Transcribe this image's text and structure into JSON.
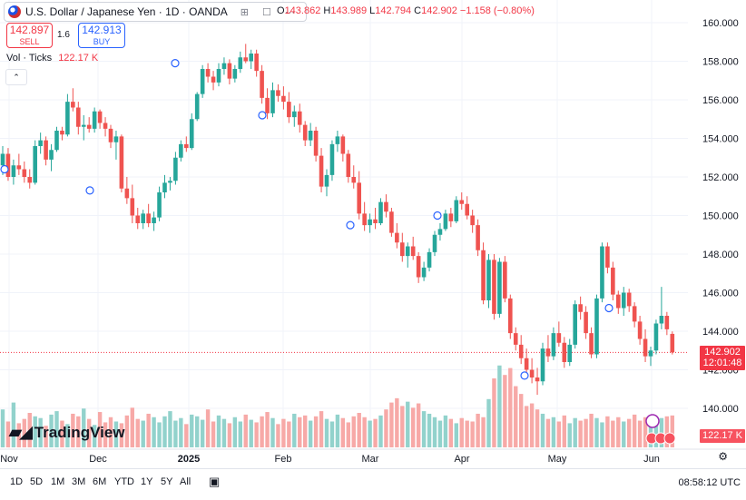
{
  "header": {
    "symbol_title": "U.S. Dollar / Japanese Yen · 1D · OANDA",
    "ohlc": [
      {
        "k": "O",
        "v": "143.862"
      },
      {
        "k": "H",
        "v": "143.989"
      },
      {
        "k": "L",
        "v": "142.794"
      },
      {
        "k": "C",
        "v": "142.902"
      }
    ],
    "change": "−1.158 (−0.80%)"
  },
  "trade": {
    "sell_price": "142.897",
    "sell_label": "SELL",
    "spread": "1.6",
    "buy_price": "142.913",
    "buy_label": "BUY"
  },
  "volume_indicator": {
    "label": "Vol · Ticks",
    "value": "122.17 K"
  },
  "price_tag": {
    "price": "142.902",
    "countdown": "12:01:48"
  },
  "volume_tag": "122.17 K",
  "logo_text": "TradingView",
  "range_buttons": [
    "1D",
    "5D",
    "1M",
    "3M",
    "6M",
    "YTD",
    "1Y",
    "5Y",
    "All"
  ],
  "clock": "08:58:12 UTC",
  "colors": {
    "up": "#26a69a",
    "down": "#ef5350",
    "vol_up": "#92d2cc",
    "vol_down": "#f7a9a7"
  },
  "chart_data": {
    "type": "candlestick",
    "y_axis_ticks": [
      "160.000",
      "158.000",
      "156.000",
      "154.000",
      "152.000",
      "150.000",
      "148.000",
      "146.000",
      "144.000",
      "142.000",
      "140.000"
    ],
    "ylim": [
      139.5,
      160.5
    ],
    "x_axis_ticks": [
      "Nov",
      "Dec",
      "2025",
      "Feb",
      "Mar",
      "Apr",
      "May",
      "Jun"
    ],
    "grid": true,
    "candles": [
      [
        152.6,
        153.6,
        152.1,
        153.2
      ],
      [
        153.2,
        153.5,
        151.8,
        152.0
      ],
      [
        152.0,
        152.9,
        151.6,
        152.6
      ],
      [
        152.6,
        153.2,
        152.1,
        152.4
      ],
      [
        152.4,
        152.8,
        151.7,
        152.0
      ],
      [
        152.0,
        152.4,
        151.4,
        151.7
      ],
      [
        151.7,
        153.9,
        151.6,
        153.6
      ],
      [
        153.6,
        154.3,
        153.2,
        153.9
      ],
      [
        153.9,
        154.1,
        152.6,
        152.9
      ],
      [
        152.9,
        153.7,
        152.3,
        153.4
      ],
      [
        153.4,
        154.6,
        153.3,
        154.4
      ],
      [
        154.4,
        154.6,
        153.9,
        154.2
      ],
      [
        154.2,
        156.3,
        154.1,
        155.9
      ],
      [
        155.9,
        156.6,
        155.4,
        155.6
      ],
      [
        155.6,
        155.9,
        154.2,
        154.6
      ],
      [
        154.6,
        155.2,
        153.9,
        154.7
      ],
      [
        154.7,
        155.1,
        154.3,
        154.5
      ],
      [
        154.5,
        155.6,
        154.3,
        155.4
      ],
      [
        155.4,
        155.5,
        154.5,
        154.8
      ],
      [
        154.8,
        155.1,
        154.1,
        154.5
      ],
      [
        154.5,
        154.7,
        153.5,
        153.8
      ],
      [
        153.8,
        154.4,
        152.9,
        154.1
      ],
      [
        154.1,
        154.2,
        151.2,
        151.4
      ],
      [
        151.4,
        152.0,
        150.6,
        150.9
      ],
      [
        150.9,
        151.6,
        149.6,
        150.0
      ],
      [
        150.0,
        150.4,
        149.3,
        149.6
      ],
      [
        149.6,
        150.3,
        149.3,
        150.1
      ],
      [
        150.1,
        150.6,
        149.4,
        149.6
      ],
      [
        149.6,
        150.2,
        149.2,
        149.9
      ],
      [
        149.9,
        151.5,
        149.7,
        151.2
      ],
      [
        151.2,
        152.1,
        150.9,
        151.7
      ],
      [
        151.7,
        152.0,
        151.3,
        151.8
      ],
      [
        151.8,
        153.3,
        151.6,
        153.0
      ],
      [
        153.0,
        153.9,
        152.8,
        153.7
      ],
      [
        153.7,
        154.1,
        153.3,
        153.5
      ],
      [
        153.5,
        155.3,
        153.4,
        155.0
      ],
      [
        155.0,
        156.4,
        154.9,
        156.3
      ],
      [
        156.3,
        157.8,
        156.1,
        157.6
      ],
      [
        157.6,
        157.9,
        156.9,
        157.2
      ],
      [
        157.2,
        157.5,
        156.5,
        156.9
      ],
      [
        156.9,
        157.9,
        156.7,
        157.6
      ],
      [
        157.6,
        158.2,
        157.3,
        157.9
      ],
      [
        157.9,
        158.1,
        156.8,
        157.1
      ],
      [
        157.1,
        157.8,
        156.9,
        157.6
      ],
      [
        157.6,
        158.5,
        157.4,
        158.2
      ],
      [
        158.2,
        158.9,
        157.9,
        158.0
      ],
      [
        158.0,
        158.6,
        157.6,
        158.4
      ],
      [
        158.4,
        158.6,
        157.2,
        157.5
      ],
      [
        157.5,
        157.8,
        155.8,
        156.1
      ],
      [
        156.1,
        156.6,
        155.0,
        155.3
      ],
      [
        155.3,
        156.9,
        155.1,
        156.5
      ],
      [
        156.5,
        156.8,
        155.9,
        156.2
      ],
      [
        156.2,
        156.7,
        155.5,
        155.9
      ],
      [
        155.9,
        156.4,
        154.8,
        155.1
      ],
      [
        155.1,
        155.7,
        154.6,
        155.4
      ],
      [
        155.4,
        155.8,
        154.3,
        154.7
      ],
      [
        154.7,
        154.9,
        153.6,
        153.9
      ],
      [
        153.9,
        154.8,
        153.6,
        154.4
      ],
      [
        154.4,
        154.6,
        152.8,
        153.1
      ],
      [
        153.1,
        153.5,
        151.2,
        151.5
      ],
      [
        151.5,
        152.4,
        151.0,
        152.1
      ],
      [
        152.1,
        153.9,
        151.8,
        153.7
      ],
      [
        153.7,
        154.4,
        153.3,
        154.1
      ],
      [
        154.1,
        154.2,
        152.8,
        153.2
      ],
      [
        153.2,
        153.4,
        151.7,
        152.0
      ],
      [
        152.0,
        152.6,
        151.4,
        151.7
      ],
      [
        151.7,
        152.3,
        149.8,
        150.1
      ],
      [
        150.1,
        150.7,
        149.2,
        149.5
      ],
      [
        149.5,
        150.1,
        149.1,
        149.8
      ],
      [
        149.8,
        150.4,
        149.3,
        149.6
      ],
      [
        149.6,
        150.9,
        149.5,
        150.7
      ],
      [
        150.7,
        151.1,
        149.9,
        150.2
      ],
      [
        150.2,
        150.4,
        148.9,
        149.1
      ],
      [
        149.1,
        149.6,
        148.3,
        148.6
      ],
      [
        148.6,
        149.1,
        147.6,
        147.9
      ],
      [
        147.9,
        148.6,
        147.3,
        148.4
      ],
      [
        148.4,
        148.9,
        147.7,
        147.9
      ],
      [
        147.9,
        148.1,
        146.5,
        146.8
      ],
      [
        146.8,
        147.6,
        146.6,
        147.3
      ],
      [
        147.3,
        148.3,
        147.1,
        148.1
      ],
      [
        148.1,
        149.2,
        147.9,
        149.0
      ],
      [
        149.0,
        149.6,
        148.7,
        149.3
      ],
      [
        149.3,
        150.3,
        149.2,
        150.1
      ],
      [
        150.1,
        150.4,
        149.4,
        149.7
      ],
      [
        149.7,
        151.0,
        149.6,
        150.8
      ],
      [
        150.8,
        151.2,
        150.3,
        150.6
      ],
      [
        150.6,
        151.0,
        149.8,
        150.0
      ],
      [
        150.0,
        150.3,
        149.1,
        149.5
      ],
      [
        149.5,
        149.8,
        147.9,
        148.2
      ],
      [
        148.2,
        148.6,
        145.4,
        145.6
      ],
      [
        145.6,
        148.0,
        145.2,
        147.7
      ],
      [
        147.7,
        148.0,
        144.6,
        144.9
      ],
      [
        144.9,
        147.8,
        144.7,
        147.6
      ],
      [
        147.6,
        147.9,
        145.5,
        145.7
      ],
      [
        145.7,
        145.9,
        143.6,
        143.9
      ],
      [
        143.9,
        144.2,
        143.0,
        143.3
      ],
      [
        143.3,
        143.8,
        142.3,
        142.6
      ],
      [
        142.6,
        143.1,
        141.8,
        142.0
      ],
      [
        142.0,
        142.6,
        141.3,
        141.6
      ],
      [
        141.6,
        142.1,
        140.7,
        141.4
      ],
      [
        141.4,
        143.4,
        141.2,
        143.1
      ],
      [
        143.1,
        143.8,
        142.4,
        142.7
      ],
      [
        142.7,
        144.2,
        142.5,
        143.9
      ],
      [
        143.9,
        144.5,
        143.2,
        143.4
      ],
      [
        143.4,
        143.7,
        142.1,
        142.4
      ],
      [
        142.4,
        143.6,
        142.2,
        143.3
      ],
      [
        143.3,
        145.6,
        143.1,
        145.4
      ],
      [
        145.4,
        145.8,
        144.6,
        145.0
      ],
      [
        145.0,
        145.3,
        143.6,
        143.9
      ],
      [
        143.9,
        144.2,
        142.6,
        142.8
      ],
      [
        142.8,
        145.9,
        142.6,
        145.7
      ],
      [
        145.7,
        148.6,
        145.5,
        148.4
      ],
      [
        148.4,
        148.6,
        147.0,
        147.3
      ],
      [
        147.3,
        147.6,
        145.6,
        145.9
      ],
      [
        145.9,
        146.1,
        144.9,
        145.2
      ],
      [
        145.2,
        146.3,
        144.8,
        146.0
      ],
      [
        146.0,
        146.2,
        145.0,
        145.3
      ],
      [
        145.3,
        145.5,
        144.2,
        144.5
      ],
      [
        144.5,
        144.8,
        143.3,
        143.6
      ],
      [
        143.6,
        144.1,
        142.4,
        142.7
      ],
      [
        142.7,
        143.2,
        142.2,
        143.0
      ],
      [
        143.0,
        144.6,
        142.8,
        144.4
      ],
      [
        144.4,
        146.3,
        144.1,
        144.8
      ],
      [
        144.8,
        145.0,
        143.8,
        144.1
      ],
      [
        143.862,
        143.989,
        142.794,
        142.902
      ]
    ],
    "volumes": [
      0.44,
      0.3,
      0.52,
      0.28,
      0.33,
      0.4,
      0.36,
      0.34,
      0.25,
      0.38,
      0.42,
      0.31,
      0.27,
      0.39,
      0.36,
      0.45,
      0.33,
      0.26,
      0.41,
      0.29,
      0.35,
      0.3,
      0.28,
      0.37,
      0.46,
      0.33,
      0.31,
      0.39,
      0.35,
      0.29,
      0.36,
      0.42,
      0.31,
      0.34,
      0.27,
      0.38,
      0.36,
      0.32,
      0.44,
      0.3,
      0.37,
      0.33,
      0.28,
      0.35,
      0.3,
      0.38,
      0.32,
      0.29,
      0.36,
      0.41,
      0.34,
      0.27,
      0.33,
      0.3,
      0.39,
      0.35,
      0.37,
      0.31,
      0.36,
      0.42,
      0.33,
      0.3,
      0.38,
      0.34,
      0.29,
      0.36,
      0.4,
      0.35,
      0.31,
      0.33,
      0.37,
      0.44,
      0.52,
      0.57,
      0.48,
      0.53,
      0.46,
      0.51,
      0.42,
      0.39,
      0.35,
      0.31,
      0.37,
      0.33,
      0.28,
      0.34,
      0.31,
      0.3,
      0.39,
      0.35,
      0.56,
      0.8,
      0.95,
      0.84,
      0.92,
      0.71,
      0.62,
      0.48,
      0.51,
      0.44,
      0.39,
      0.33,
      0.35,
      0.3,
      0.37,
      0.28,
      0.34,
      0.31,
      0.33,
      0.39,
      0.34,
      0.29,
      0.36,
      0.31,
      0.35,
      0.3,
      0.33,
      0.38,
      0.31,
      0.35,
      0.29,
      0.3,
      0.34,
      0.36,
      0.37
    ]
  }
}
